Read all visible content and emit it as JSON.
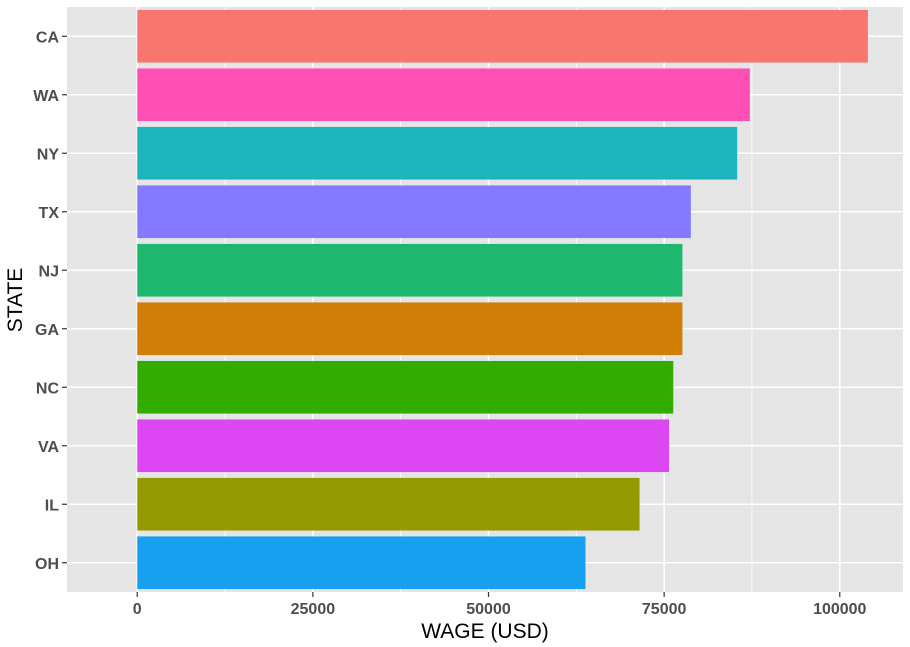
{
  "chart_data": {
    "type": "bar",
    "orientation": "horizontal",
    "title": "",
    "xlabel": "WAGE (USD)",
    "ylabel": "STATE",
    "xlim": [
      -10000,
      109000
    ],
    "x_ticks": [
      0,
      25000,
      50000,
      75000,
      100000
    ],
    "x_tick_labels": [
      "0",
      "25000",
      "50000",
      "75000",
      "100000"
    ],
    "categories": [
      "CA",
      "WA",
      "NY",
      "TX",
      "NJ",
      "GA",
      "NC",
      "VA",
      "IL",
      "OH"
    ],
    "values": [
      104000,
      87200,
      85400,
      78800,
      77600,
      77600,
      76300,
      75700,
      71500,
      63800
    ],
    "colors": [
      "#F8766D",
      "#FF4FB4",
      "#1CB5BD",
      "#8479FF",
      "#1DB86E",
      "#D17E06",
      "#33AC00",
      "#DC47F3",
      "#959A03",
      "#17A0F0"
    ],
    "grid": true,
    "legend": "none",
    "panel_background": "#E5E5E5",
    "grid_color": "#FFFFFF"
  }
}
